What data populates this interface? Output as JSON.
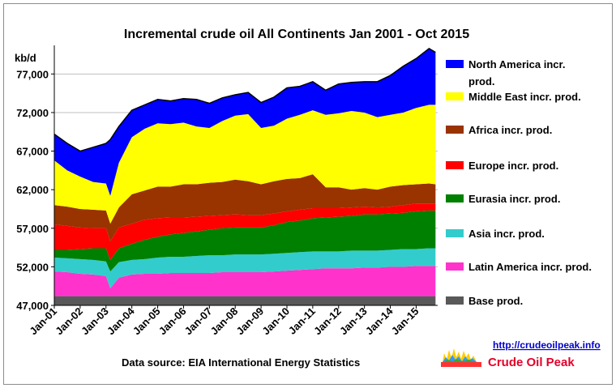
{
  "chart_data": {
    "type": "area",
    "title": "Incremental crude oil All Continents  Jan 2001 - Oct 2015",
    "ylabel": "kb/d",
    "xlabel": "",
    "ylim": [
      47000,
      80500
    ],
    "yticks": [
      "47,000",
      "52,000",
      "57,000",
      "62,000",
      "67,000",
      "72,000",
      "77,000"
    ],
    "ytick_values": [
      47000,
      52000,
      57000,
      62000,
      67000,
      72000,
      77000
    ],
    "xticks": [
      "Jan-01",
      "Jan-02",
      "Jan-03",
      "Jan-04",
      "Jan-05",
      "Jan-06",
      "Jan-07",
      "Jan-08",
      "Jan-09",
      "Jan-10",
      "Jan-11",
      "Jan-12",
      "Jan-13",
      "Jan-14",
      "Jan-15"
    ],
    "x_dates": [
      "2001-01",
      "2001-07",
      "2002-01",
      "2002-07",
      "2003-01",
      "2003-03",
      "2003-07",
      "2004-01",
      "2004-07",
      "2005-01",
      "2005-07",
      "2006-01",
      "2006-07",
      "2007-01",
      "2007-07",
      "2008-01",
      "2008-07",
      "2009-01",
      "2009-07",
      "2010-01",
      "2010-07",
      "2011-01",
      "2011-07",
      "2012-01",
      "2012-07",
      "2013-01",
      "2013-07",
      "2014-01",
      "2014-07",
      "2015-01",
      "2015-07",
      "2015-10"
    ],
    "grid": true,
    "legend_position": "right",
    "series_order": "bottom-to-top",
    "series": [
      {
        "name": "Base prod.",
        "color": "#595959",
        "cumulative_top": [
          48200,
          48200,
          48200,
          48200,
          48200,
          48200,
          48200,
          48200,
          48200,
          48200,
          48200,
          48200,
          48200,
          48200,
          48200,
          48200,
          48200,
          48200,
          48200,
          48200,
          48200,
          48200,
          48200,
          48200,
          48200,
          48200,
          48200,
          48200,
          48200,
          48200,
          48200,
          48200
        ]
      },
      {
        "name": "Latin America incr. prod.",
        "color": "#ff33cc",
        "cumulative_top": [
          51400,
          51300,
          51100,
          51000,
          50800,
          49200,
          50600,
          51000,
          51100,
          51100,
          51200,
          51200,
          51200,
          51200,
          51300,
          51300,
          51300,
          51300,
          51400,
          51500,
          51600,
          51700,
          51800,
          51800,
          51800,
          51900,
          51900,
          52000,
          52000,
          52100,
          52100,
          52100
        ]
      },
      {
        "name": "Asia incr. prod.",
        "color": "#33cccc",
        "cumulative_top": [
          53200,
          53100,
          53000,
          52900,
          52700,
          51400,
          52600,
          52900,
          53000,
          53200,
          53300,
          53300,
          53400,
          53500,
          53500,
          53600,
          53600,
          53600,
          53700,
          53800,
          53900,
          54000,
          54000,
          54000,
          54100,
          54100,
          54100,
          54200,
          54300,
          54300,
          54400,
          54400
        ]
      },
      {
        "name": "Eurasia incr. prod.",
        "color": "#008000",
        "cumulative_top": [
          54200,
          54200,
          54300,
          54400,
          54400,
          52900,
          54400,
          55000,
          55500,
          55900,
          56200,
          56400,
          56600,
          56800,
          57000,
          57100,
          57100,
          57100,
          57400,
          57800,
          58000,
          58300,
          58400,
          58500,
          58600,
          58800,
          58800,
          58900,
          59000,
          59200,
          59300,
          59300
        ]
      },
      {
        "name": "Europe incr. prod.",
        "color": "#ff0000",
        "cumulative_top": [
          57500,
          57300,
          57100,
          57000,
          57000,
          55300,
          57100,
          57600,
          58100,
          58300,
          58400,
          58400,
          58500,
          58600,
          58700,
          58800,
          58700,
          58700,
          58900,
          59200,
          59400,
          59600,
          59600,
          59600,
          59700,
          59800,
          59700,
          59800,
          60000,
          60200,
          60200,
          60200
        ]
      },
      {
        "name": "Africa incr. prod.",
        "color": "#993300",
        "cumulative_top": [
          60000,
          59800,
          59500,
          59400,
          59300,
          57600,
          59700,
          61400,
          61900,
          62400,
          62400,
          62700,
          62700,
          62900,
          63000,
          63300,
          63100,
          62700,
          63100,
          63400,
          63500,
          64000,
          62300,
          62300,
          62000,
          62200,
          62000,
          62400,
          62600,
          62700,
          62800,
          62700
        ]
      },
      {
        "name": "Middle East incr. prod.",
        "color": "#ffff00",
        "cumulative_top": [
          65800,
          64500,
          63700,
          63000,
          62800,
          61200,
          65500,
          68800,
          69900,
          70600,
          70500,
          70700,
          70200,
          70000,
          70900,
          71600,
          71800,
          70000,
          70300,
          71200,
          71700,
          72300,
          71700,
          71900,
          72200,
          72000,
          71400,
          71700,
          72000,
          72600,
          73000,
          73000
        ]
      },
      {
        "name": "North America incr. prod.",
        "color": "#0000ff",
        "cumulative_top": [
          69200,
          68000,
          67000,
          67500,
          68000,
          68500,
          70200,
          72300,
          73000,
          73700,
          73500,
          73800,
          73700,
          73200,
          73900,
          74300,
          74600,
          73300,
          74000,
          75200,
          75400,
          76000,
          74900,
          75700,
          75900,
          76000,
          76000,
          76800,
          78000,
          79000,
          80300,
          79800
        ]
      }
    ]
  },
  "footer": {
    "source": "Data source: EIA International Energy Statistics",
    "url": "http://crudeoilpeak.info",
    "brand": "Crude Oil Peak"
  }
}
